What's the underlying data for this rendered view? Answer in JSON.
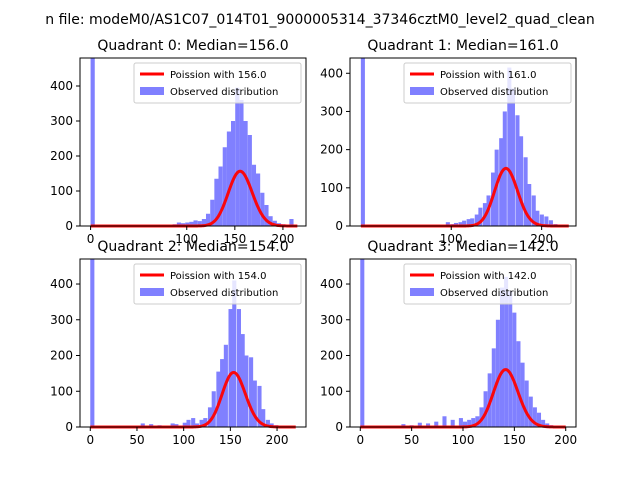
{
  "figure": {
    "suptitle": "n file: modeM0/AS1C07_014T01_9000005314_37346cztM0_level2_quad_clean"
  },
  "colors": {
    "line": "#ff0000",
    "bar": "#8080ff",
    "axis": "#000000",
    "background": "#ffffff"
  },
  "chart_data": [
    {
      "type": "bar",
      "title": "Quadrant 0: Median=156.0",
      "xlim": [
        -11,
        224
      ],
      "ylim": [
        0,
        480
      ],
      "xticks": [
        0,
        100,
        150,
        200
      ],
      "yticks": [
        0,
        100,
        200,
        300,
        400
      ],
      "legend": [
        "Poission with 156.0",
        "Observed distribution"
      ],
      "legend_position": "top-right",
      "series": [
        {
          "name": "Observed distribution",
          "type": "bar",
          "bin_width": 4.35,
          "values": [
            [
              0,
              480
            ],
            [
              85.3,
              5
            ],
            [
              89.7,
              10
            ],
            [
              94,
              8
            ],
            [
              98.4,
              10
            ],
            [
              102.7,
              12
            ],
            [
              107,
              16
            ],
            [
              111.4,
              14
            ],
            [
              115.7,
              20
            ],
            [
              120,
              35
            ],
            [
              124.4,
              75
            ],
            [
              128.7,
              135
            ],
            [
              133,
              170
            ],
            [
              137.4,
              225
            ],
            [
              141.7,
              270
            ],
            [
              146,
              300
            ],
            [
              150.4,
              395
            ],
            [
              154.7,
              360
            ],
            [
              159,
              300
            ],
            [
              163.4,
              260
            ],
            [
              167.7,
              175
            ],
            [
              172,
              150
            ],
            [
              176.4,
              95
            ],
            [
              180.7,
              60
            ],
            [
              185,
              28
            ],
            [
              189.4,
              15
            ],
            [
              193.7,
              8
            ],
            [
              198,
              5
            ],
            [
              202.4,
              3
            ],
            [
              206.7,
              20
            ]
          ]
        },
        {
          "name": "Poission with 156.0",
          "type": "line",
          "mean": 156.0,
          "total": 4900,
          "x_range": [
            0,
            215
          ]
        }
      ]
    },
    {
      "type": "bar",
      "title": "Quadrant 1: Median=161.0",
      "xlim": [
        -12,
        238
      ],
      "ylim": [
        0,
        440
      ],
      "xticks": [
        100,
        200
      ],
      "yticks": [
        0,
        100,
        200,
        300,
        400
      ],
      "legend": [
        "Poission with 161.0",
        "Observed distribution"
      ],
      "legend_position": "top-right",
      "series": [
        {
          "name": "Observed distribution",
          "type": "bar",
          "bin_width": 4.5,
          "values": [
            [
              0,
              440
            ],
            [
              94,
              10
            ],
            [
              99,
              5
            ],
            [
              103,
              8
            ],
            [
              108,
              10
            ],
            [
              112,
              14
            ],
            [
              117,
              18
            ],
            [
              121,
              20
            ],
            [
              126,
              30
            ],
            [
              130,
              48
            ],
            [
              135,
              60
            ],
            [
              139,
              80
            ],
            [
              144,
              140
            ],
            [
              148,
              200
            ],
            [
              153,
              230
            ],
            [
              157,
              300
            ],
            [
              162,
              415
            ],
            [
              166,
              360
            ],
            [
              171,
              290
            ],
            [
              175,
              235
            ],
            [
              180,
              180
            ],
            [
              184,
              110
            ],
            [
              189,
              80
            ],
            [
              193,
              40
            ],
            [
              198,
              30
            ],
            [
              203,
              25
            ],
            [
              208,
              15
            ],
            [
              213,
              5
            ]
          ]
        },
        {
          "name": "Poission with 161.0",
          "type": "line",
          "mean": 161.0,
          "total": 4800,
          "x_range": [
            0,
            230
          ]
        }
      ]
    },
    {
      "type": "bar",
      "title": "Quadrant 2: Median=154.0",
      "xlim": [
        -11,
        231
      ],
      "ylim": [
        0,
        470
      ],
      "xticks": [
        0,
        50,
        100,
        150,
        200
      ],
      "yticks": [
        0,
        100,
        200,
        300,
        400
      ],
      "legend": [
        "Poission with 154.0",
        "Observed distribution"
      ],
      "legend_position": "top-right",
      "series": [
        {
          "name": "Observed distribution",
          "type": "bar",
          "bin_width": 4.4,
          "values": [
            [
              0,
              470
            ],
            [
              54,
              10
            ],
            [
              63,
              8
            ],
            [
              72,
              5
            ],
            [
              86,
              10
            ],
            [
              90,
              8
            ],
            [
              99,
              12
            ],
            [
              103,
              20
            ],
            [
              108,
              25
            ],
            [
              112,
              10
            ],
            [
              117,
              20
            ],
            [
              121,
              25
            ],
            [
              126,
              55
            ],
            [
              130,
              100
            ],
            [
              135,
              155
            ],
            [
              139,
              190
            ],
            [
              143,
              230
            ],
            [
              148,
              330
            ],
            [
              152,
              410
            ],
            [
              157,
              330
            ],
            [
              161,
              260
            ],
            [
              165,
              200
            ],
            [
              170,
              195
            ],
            [
              174,
              130
            ],
            [
              179,
              115
            ],
            [
              183,
              50
            ],
            [
              188,
              20
            ],
            [
              192,
              10
            ],
            [
              197,
              5
            ]
          ]
        },
        {
          "name": "Poission with 154.0",
          "type": "line",
          "mean": 154.0,
          "total": 4750,
          "x_range": [
            0,
            220
          ]
        }
      ]
    },
    {
      "type": "bar",
      "title": "Quadrant 3: Median=142.0",
      "xlim": [
        -10,
        210
      ],
      "ylim": [
        0,
        470
      ],
      "xticks": [
        0,
        50,
        100,
        150,
        200
      ],
      "yticks": [
        0,
        100,
        200,
        300,
        400
      ],
      "legend": [
        "Poission with 142.0",
        "Observed distribution"
      ],
      "legend_position": "top-right",
      "series": [
        {
          "name": "Observed distribution",
          "type": "bar",
          "bin_width": 3.95,
          "values": [
            [
              0,
              470
            ],
            [
              40,
              8
            ],
            [
              48,
              5
            ],
            [
              56,
              12
            ],
            [
              64,
              10
            ],
            [
              72,
              15
            ],
            [
              80,
              30
            ],
            [
              88,
              20
            ],
            [
              96,
              25
            ],
            [
              100,
              15
            ],
            [
              104,
              20
            ],
            [
              108,
              25
            ],
            [
              112,
              30
            ],
            [
              116,
              55
            ],
            [
              120,
              100
            ],
            [
              124,
              150
            ],
            [
              128,
              220
            ],
            [
              132,
              300
            ],
            [
              136,
              390
            ],
            [
              140,
              420
            ],
            [
              144,
              380
            ],
            [
              148,
              320
            ],
            [
              152,
              240
            ],
            [
              156,
              180
            ],
            [
              160,
              130
            ],
            [
              164,
              85
            ],
            [
              168,
              55
            ],
            [
              172,
              40
            ],
            [
              176,
              20
            ],
            [
              180,
              10
            ],
            [
              184,
              5
            ]
          ]
        },
        {
          "name": "Poission with 142.0",
          "type": "line",
          "mean": 142.0,
          "total": 4800,
          "x_range": [
            0,
            200
          ]
        }
      ]
    }
  ]
}
